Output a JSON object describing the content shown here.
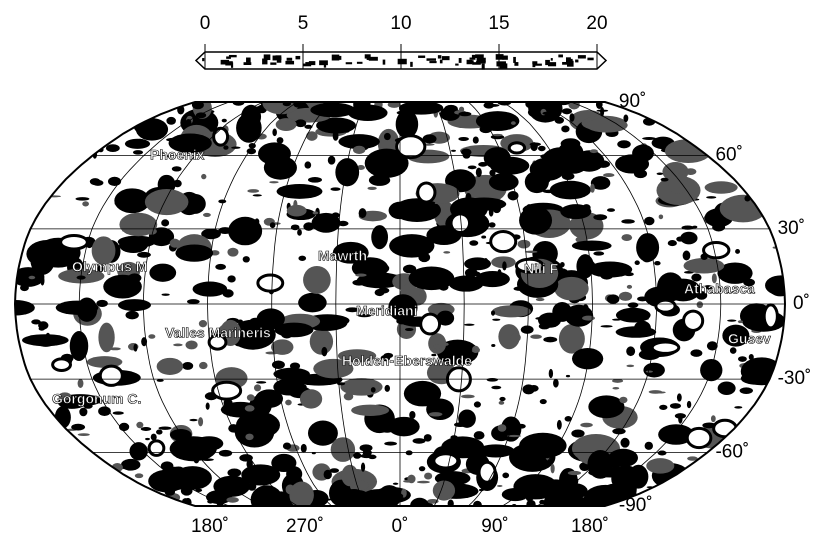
{
  "colorbar": {
    "range": [
      0,
      20
    ],
    "ticks": [
      0,
      5,
      10,
      15,
      20
    ]
  },
  "map": {
    "latitudes": [
      {
        "value": 90,
        "label": "90˚"
      },
      {
        "value": 60,
        "label": "60˚"
      },
      {
        "value": 30,
        "label": "30˚"
      },
      {
        "value": 0,
        "label": "0˚"
      },
      {
        "value": -30,
        "label": "-30˚"
      },
      {
        "value": -60,
        "label": "-60˚"
      },
      {
        "value": -90,
        "label": "-90˚"
      }
    ],
    "longitude_labels": [
      "180˚",
      "270˚",
      "0˚",
      "90˚",
      "180˚"
    ],
    "places": [
      "Phoenix",
      "Olympus M",
      "Mawrth",
      "Nili F",
      "Athabasca",
      "Meridiani",
      "Valles Marineris",
      "Holden-Eberswalde",
      "Gusev",
      "Gorgonum C."
    ]
  }
}
